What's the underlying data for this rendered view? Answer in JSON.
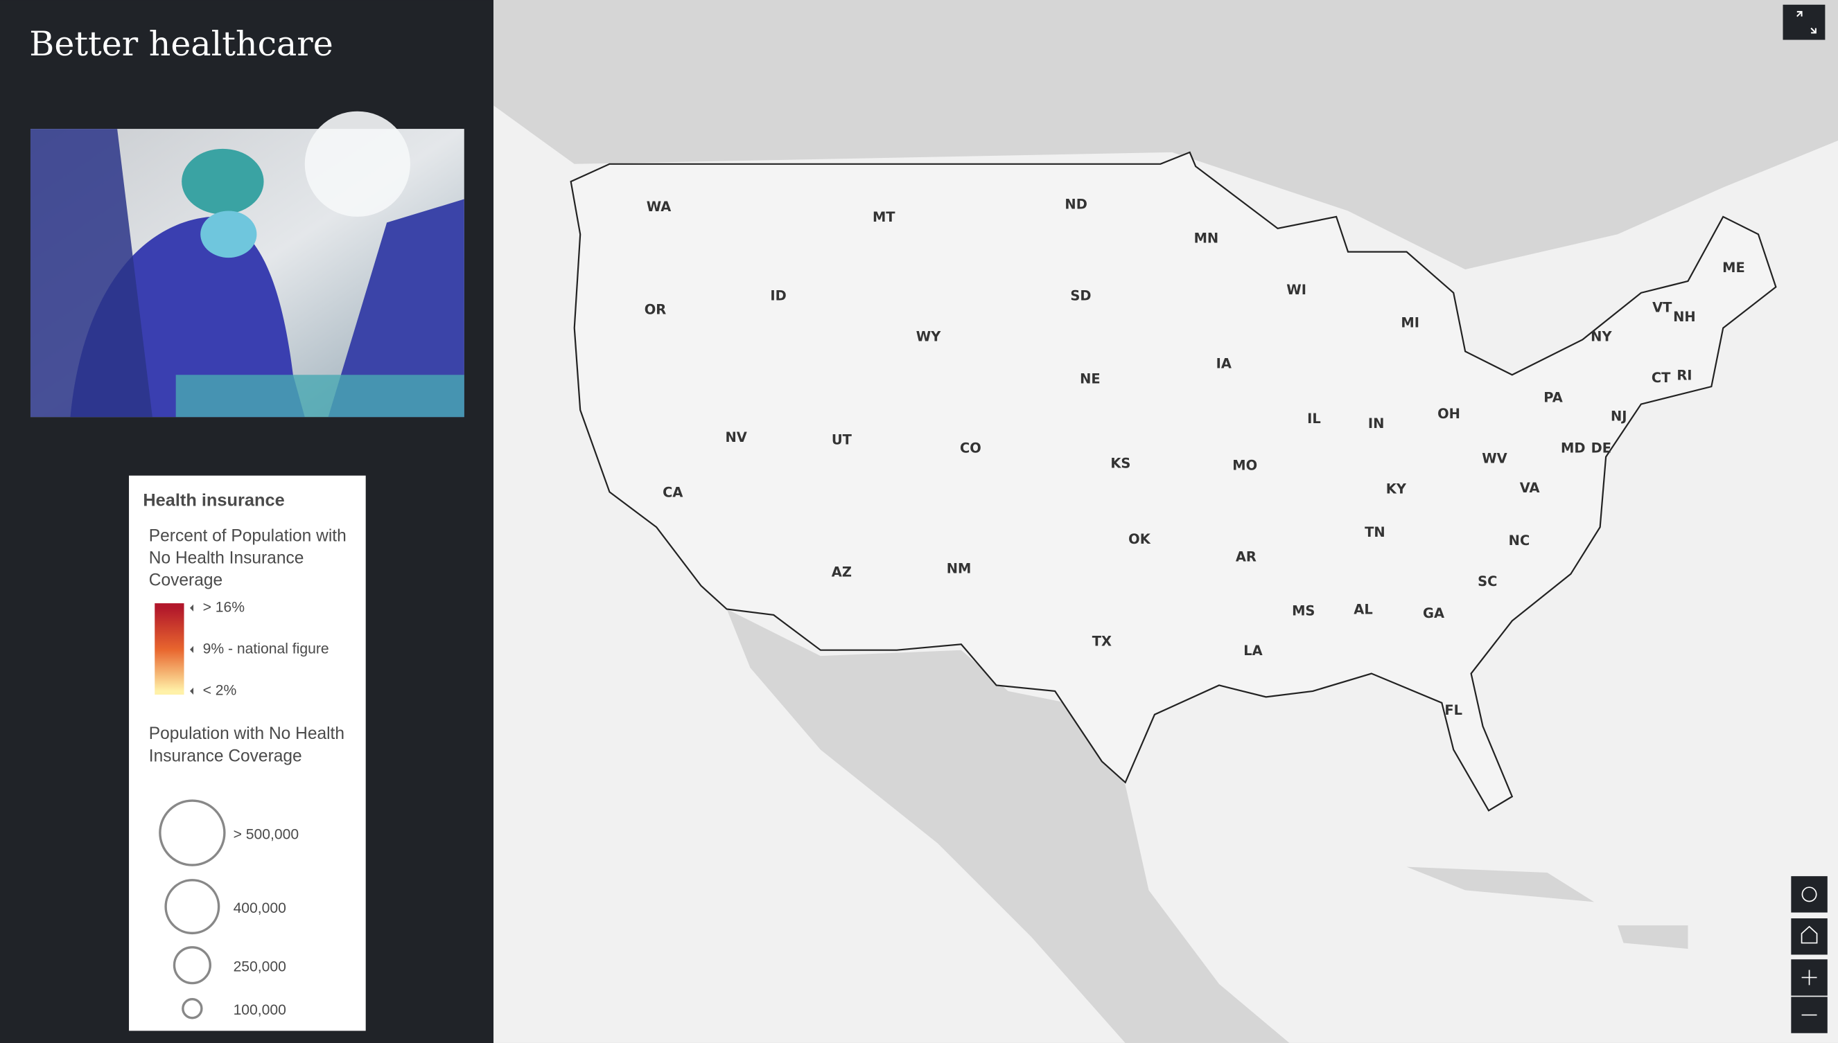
{
  "header": {
    "title": "Better healthcare"
  },
  "map": {
    "state_labels": [
      "WA",
      "OR",
      "CA",
      "NV",
      "ID",
      "MT",
      "WY",
      "UT",
      "AZ",
      "CO",
      "NM",
      "ND",
      "SD",
      "NE",
      "KS",
      "OK",
      "TX",
      "MN",
      "IA",
      "MO",
      "AR",
      "LA",
      "WI",
      "IL",
      "MI",
      "IN",
      "OH",
      "KY",
      "TN",
      "MS",
      "AL",
      "GA",
      "FL",
      "SC",
      "NC",
      "VA",
      "WV",
      "PA",
      "NY",
      "MD",
      "DE",
      "NJ",
      "CT",
      "RI",
      "VT",
      "NH",
      "ME"
    ]
  },
  "legend": {
    "title": "Health insurance",
    "color_title": "Percent of Population with No Health Insurance Coverage",
    "color_stops": [
      {
        "value": 16,
        "label": "> 16%",
        "color": "#b2182b"
      },
      {
        "value": 9,
        "label": "9% - national figure",
        "color": "#e8662e"
      },
      {
        "value": 2,
        "label": "< 2%",
        "color": "#fff1a8"
      }
    ],
    "size_title": "Population with No Health Insurance Coverage",
    "size_stops": [
      {
        "value": 500000,
        "label": "> 500,000"
      },
      {
        "value": 400000,
        "label": "400,000"
      },
      {
        "value": 250000,
        "label": "250,000"
      },
      {
        "value": 100000,
        "label": "100,000"
      }
    ]
  }
}
